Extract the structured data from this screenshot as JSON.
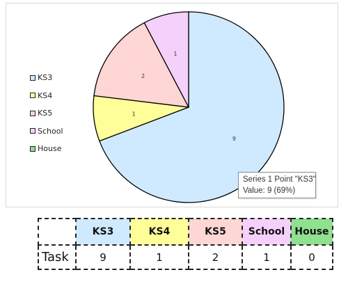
{
  "chart_data": {
    "type": "pie",
    "categories": [
      "KS3",
      "KS4",
      "KS5",
      "School",
      "House"
    ],
    "values": [
      9,
      1,
      2,
      1,
      0
    ],
    "colors": [
      "#cfeaff",
      "#ffff99",
      "#ffd6d6",
      "#f5d0fa",
      "#8fe08f"
    ],
    "slice_labels": [
      "9",
      "1",
      "2",
      "1",
      ""
    ],
    "legend_position": "left",
    "tooltip": {
      "line1": "Series 1 Point \"KS3\"",
      "line2": "Value: 9 (69%)"
    }
  },
  "table": {
    "header": [
      "",
      "KS3",
      "KS4",
      "KS5",
      "School",
      "House"
    ],
    "header_colors": [
      "#ffffff",
      "#cfeaff",
      "#ffff99",
      "#ffd6d6",
      "#f5d0fa",
      "#8fe08f"
    ],
    "rows": [
      {
        "label": "Task",
        "values": [
          "9",
          "1",
          "2",
          "1",
          "0"
        ]
      }
    ]
  }
}
